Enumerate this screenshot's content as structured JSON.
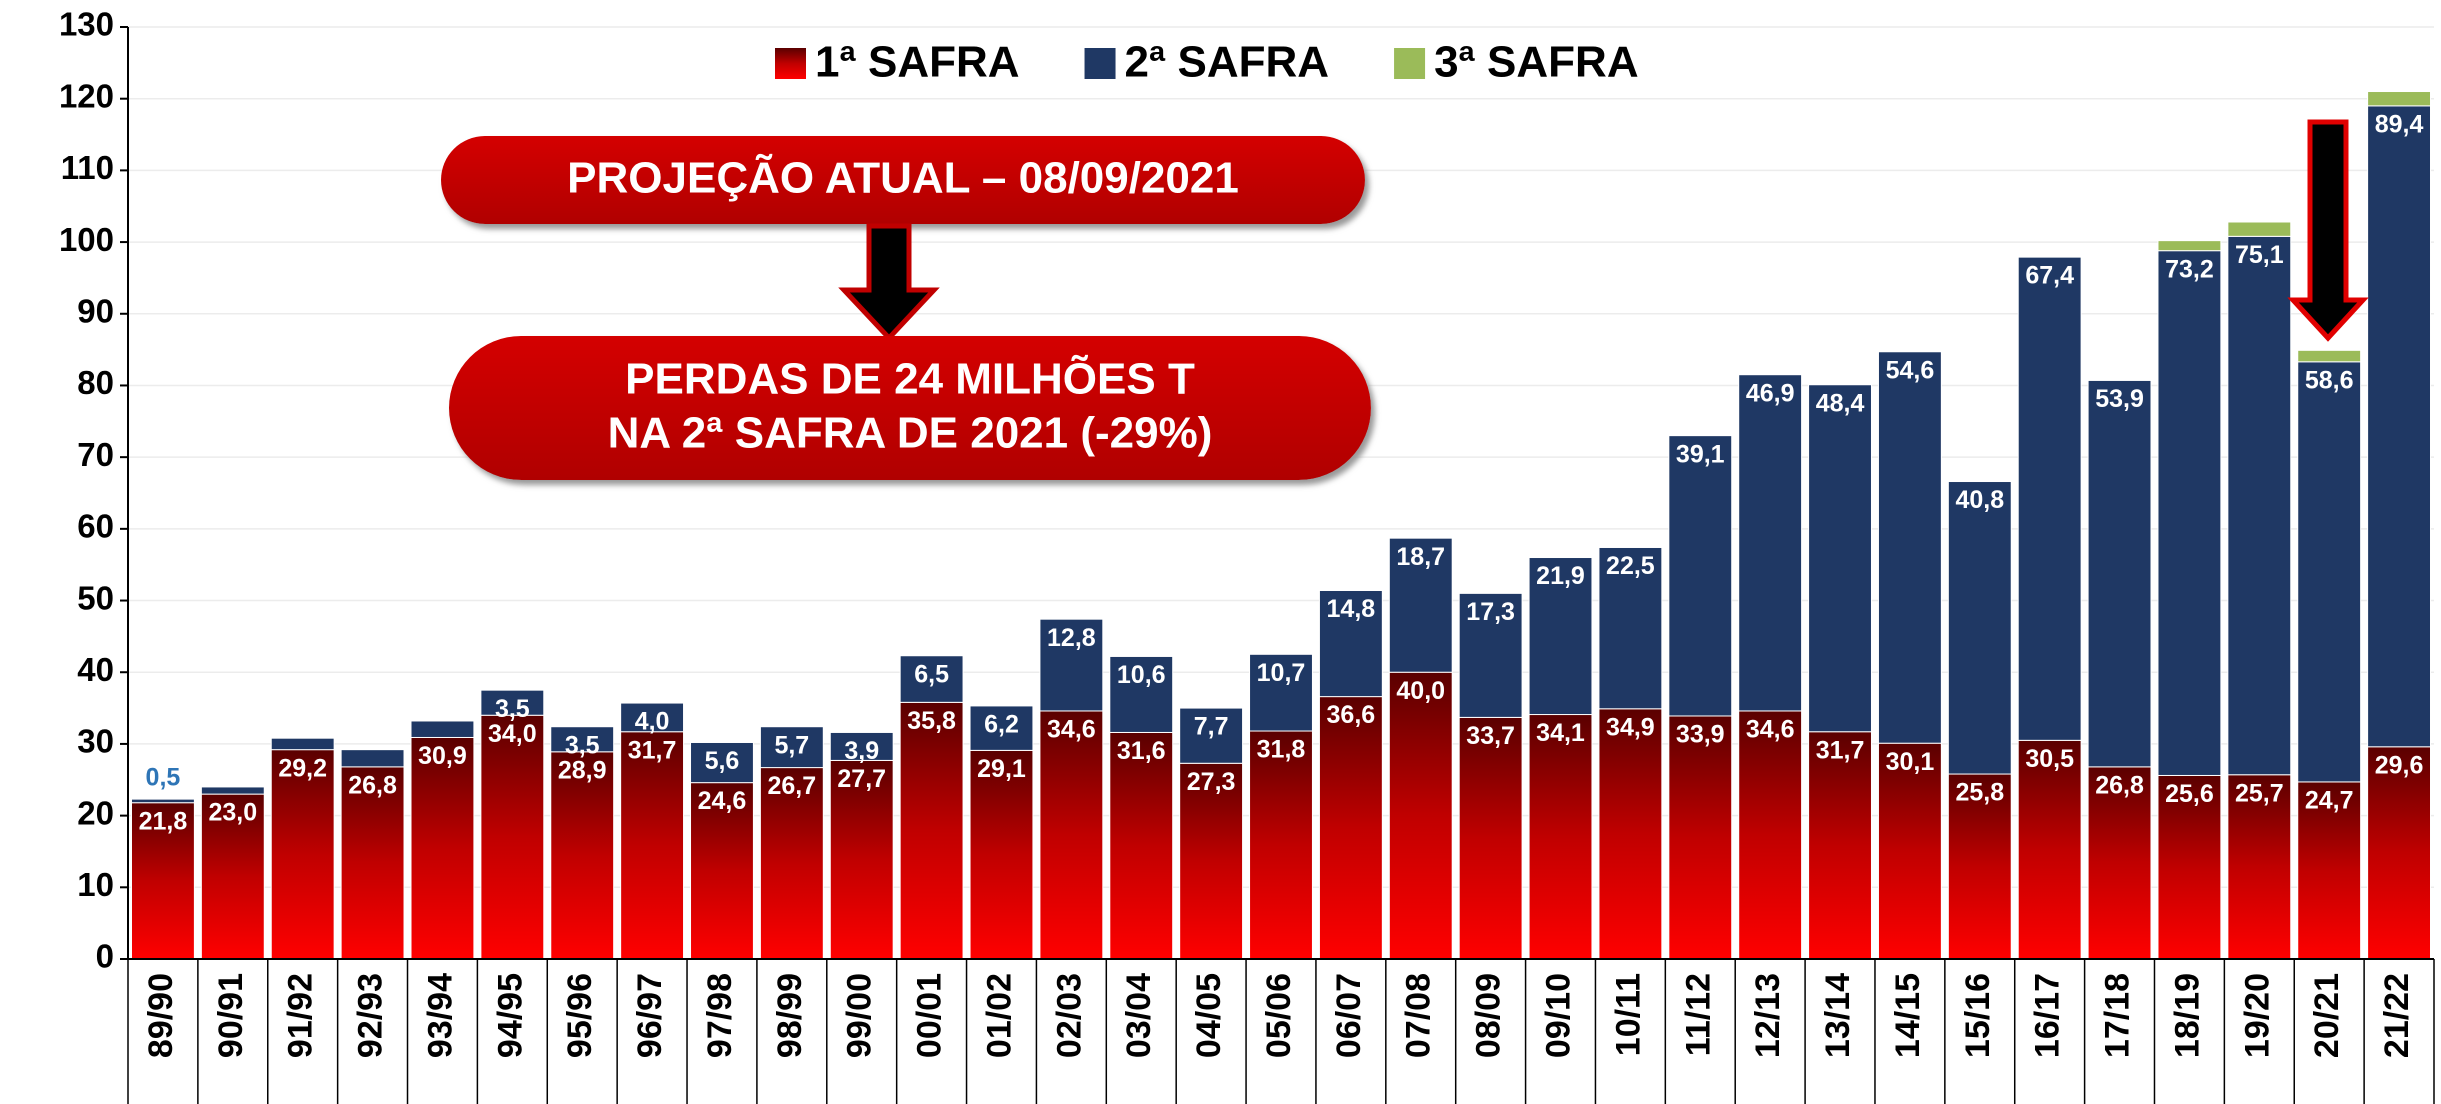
{
  "chart_data": {
    "type": "stacked-bar",
    "legend": "top",
    "grid": true,
    "ylim": [
      0,
      130
    ],
    "yticks": [
      0,
      10,
      20,
      30,
      40,
      50,
      60,
      70,
      80,
      90,
      100,
      110,
      120,
      130
    ],
    "annotations": [
      "PROJEÇÃO ATUAL – 08/09/2021",
      "PERDAS DE 24 MILHÕES T",
      "NA 2ª SAFRA DE 2021 (-29%)"
    ],
    "categories": [
      "89/90",
      "90/91",
      "91/92",
      "92/93",
      "93/94",
      "94/95",
      "95/96",
      "96/97",
      "97/98",
      "98/99",
      "99/00",
      "00/01",
      "01/02",
      "02/03",
      "03/04",
      "04/05",
      "05/06",
      "06/07",
      "07/08",
      "08/09",
      "09/10",
      "10/11",
      "11/12",
      "12/13",
      "13/14",
      "14/15",
      "15/16",
      "16/17",
      "17/18",
      "18/19",
      "19/20",
      "20/21",
      "21/22"
    ],
    "series": [
      {
        "name": "1ª SAFRA",
        "color": "#ff0000",
        "values": [
          21.8,
          23.0,
          29.2,
          26.8,
          30.9,
          34.0,
          28.9,
          31.7,
          24.6,
          26.7,
          27.7,
          35.8,
          29.1,
          34.6,
          31.6,
          27.3,
          31.8,
          36.6,
          40.0,
          33.7,
          34.1,
          34.9,
          33.9,
          34.6,
          31.7,
          30.1,
          25.8,
          30.5,
          26.8,
          25.6,
          25.7,
          24.7,
          29.6
        ],
        "value_labels": [
          "21,8",
          "23,0",
          "29,2",
          "26,8",
          "30,9",
          "34,0",
          "28,9",
          "31,7",
          "24,6",
          "26,7",
          "27,7",
          "35,8",
          "29,1",
          "34,6",
          "31,6",
          "27,3",
          "31,8",
          "36,6",
          "40,0",
          "33,7",
          "34,1",
          "34,9",
          "33,9",
          "34,6",
          "31,7",
          "30,1",
          "25,8",
          "30,5",
          "26,8",
          "25,6",
          "25,7",
          "24,7",
          "29,6"
        ]
      },
      {
        "name": "2ª SAFRA",
        "color": "#1f3864",
        "values": [
          0.5,
          1.0,
          1.6,
          2.4,
          2.3,
          3.5,
          3.5,
          4.0,
          5.6,
          5.7,
          3.9,
          6.5,
          6.2,
          12.8,
          10.6,
          7.7,
          10.7,
          14.8,
          18.7,
          17.3,
          21.9,
          22.5,
          39.1,
          46.9,
          48.4,
          54.6,
          40.8,
          67.4,
          53.9,
          73.2,
          75.1,
          58.6,
          89.4
        ],
        "value_labels": [
          "0,5",
          null,
          null,
          null,
          null,
          "3,5",
          "3,5",
          "4,0",
          "5,6",
          "5,7",
          "3,9",
          "6,5",
          "6,2",
          "12,8",
          "10,6",
          "7,7",
          "10,7",
          "14,8",
          "18,7",
          "17,3",
          "21,9",
          "22,5",
          "39,1",
          "46,9",
          "48,4",
          "54,6",
          "40,8",
          "67,4",
          "53,9",
          "73,2",
          "75,1",
          "58,6",
          "89,4"
        ]
      },
      {
        "name": "3ª SAFRA",
        "color": "#9bbb59",
        "values": [
          0,
          0,
          0,
          0,
          0,
          0,
          0,
          0,
          0,
          0,
          0,
          0,
          0,
          0,
          0,
          0,
          0,
          0,
          0,
          0,
          0,
          0,
          0,
          0,
          0,
          0,
          0,
          0,
          0,
          1.4,
          2.0,
          1.6,
          2.0
        ]
      }
    ]
  }
}
